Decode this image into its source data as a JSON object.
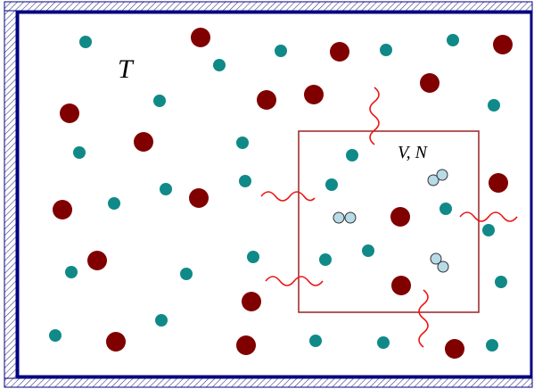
{
  "labels": {
    "temperature": "T",
    "subsystem": "V, N"
  }
}
